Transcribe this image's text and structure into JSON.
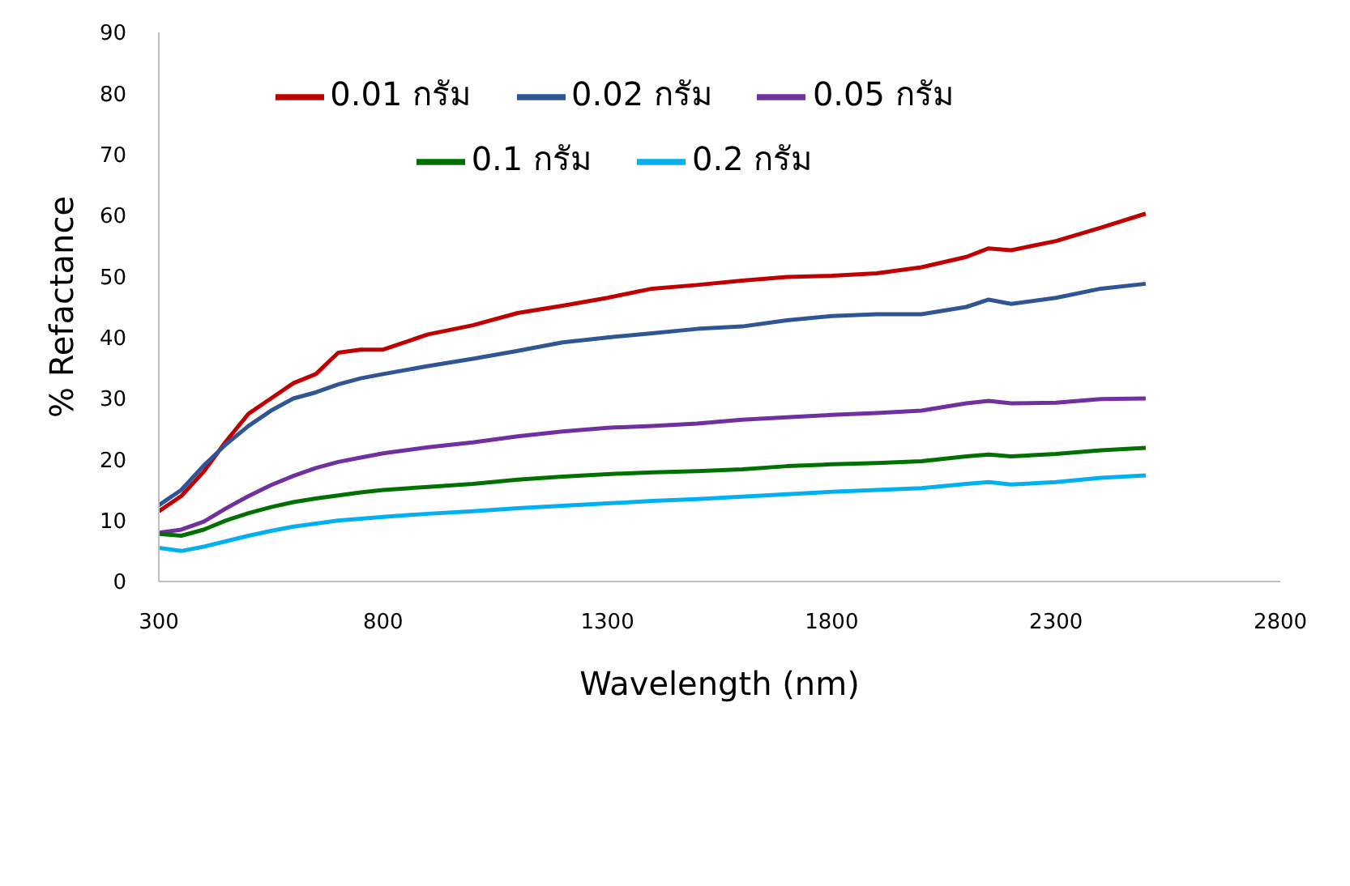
{
  "chart_data": {
    "type": "line",
    "xlabel": "Wavelength (nm)",
    "ylabel": "% Refactance",
    "x": [
      300,
      350,
      400,
      450,
      500,
      550,
      600,
      650,
      700,
      750,
      800,
      900,
      1000,
      1100,
      1200,
      1300,
      1400,
      1500,
      1600,
      1700,
      1800,
      1900,
      2000,
      2100,
      2150,
      2200,
      2300,
      2400,
      2500
    ],
    "series": [
      {
        "name": "0.01 กรัม",
        "color": "#c00000",
        "values": [
          11.5,
          14,
          18,
          23,
          27.5,
          30,
          32.5,
          34,
          37.5,
          38,
          38,
          40.5,
          42,
          44,
          45.2,
          46.5,
          48,
          48.6,
          49.3,
          49.9,
          50.1,
          50.5,
          51.5,
          53.2,
          54.6,
          54.3,
          55.8,
          58,
          60.3
        ]
      },
      {
        "name": "0.02 กรัม",
        "color": "#2f5597",
        "values": [
          12.5,
          15,
          19,
          22.5,
          25.5,
          28,
          30,
          31,
          32.3,
          33.3,
          34,
          35.3,
          36.5,
          37.8,
          39.2,
          40,
          40.7,
          41.4,
          41.8,
          42.8,
          43.5,
          43.8,
          43.8,
          45,
          46.2,
          45.5,
          46.5,
          48,
          48.8
        ]
      },
      {
        "name": "0.05 กรัม",
        "color": "#7030a0",
        "values": [
          8,
          8.5,
          9.8,
          12,
          14,
          15.8,
          17.3,
          18.6,
          19.6,
          20.3,
          21,
          22,
          22.8,
          23.8,
          24.6,
          25.2,
          25.5,
          25.9,
          26.5,
          26.9,
          27.3,
          27.6,
          28,
          29.2,
          29.6,
          29.2,
          29.3,
          29.9,
          30
        ]
      },
      {
        "name": "0.1 กรัม",
        "color": "#007000",
        "values": [
          7.8,
          7.5,
          8.5,
          10,
          11.2,
          12.2,
          13,
          13.6,
          14.1,
          14.6,
          15,
          15.5,
          16,
          16.7,
          17.2,
          17.6,
          17.9,
          18.1,
          18.4,
          18.9,
          19.2,
          19.4,
          19.7,
          20.5,
          20.8,
          20.5,
          20.9,
          21.5,
          21.9
        ]
      },
      {
        "name": "0.2 กรัม",
        "color": "#00b0f0",
        "values": [
          5.5,
          5,
          5.7,
          6.6,
          7.5,
          8.3,
          9,
          9.5,
          10,
          10.3,
          10.6,
          11.1,
          11.5,
          12,
          12.4,
          12.8,
          13.2,
          13.5,
          13.9,
          14.3,
          14.7,
          15,
          15.3,
          16,
          16.3,
          15.9,
          16.3,
          17,
          17.4
        ]
      }
    ],
    "xlim": [
      300,
      2800
    ],
    "xticks": [
      300,
      800,
      1300,
      1800,
      2300,
      2800
    ],
    "ylim": [
      0,
      90
    ],
    "yticks": [
      0,
      10,
      20,
      30,
      40,
      50,
      60,
      70,
      80,
      90
    ],
    "grid": false,
    "legend": "top left",
    "marker": "none",
    "line_style": "solid"
  }
}
